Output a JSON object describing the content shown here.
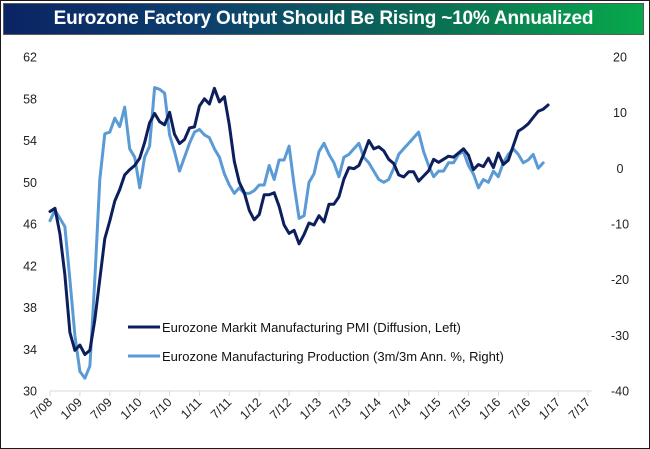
{
  "chart_data": {
    "type": "line",
    "title": "Eurozone Factory Output Should Be Rising ~10% Annualized",
    "xlabel": "",
    "ylabel_left": "",
    "ylabel_right": "",
    "x_start": "7/08",
    "x_tick_labels": [
      "7/08",
      "1/09",
      "7/09",
      "1/10",
      "7/10",
      "1/11",
      "7/11",
      "1/12",
      "7/12",
      "1/13",
      "7/13",
      "1/14",
      "7/14",
      "1/15",
      "7/15",
      "1/16",
      "7/16",
      "1/17",
      "7/17"
    ],
    "y_left": {
      "range": [
        30,
        62
      ],
      "ticks": [
        "62",
        "58",
        "54",
        "50",
        "46",
        "42",
        "38",
        "34",
        "30"
      ]
    },
    "y_right": {
      "range": [
        -40,
        20
      ],
      "ticks": [
        "20",
        "10",
        "0",
        "-10",
        "-20",
        "-30",
        "-40"
      ]
    },
    "grid": false,
    "legend_position": "bottom-left-inside",
    "series": [
      {
        "name": "Eurozone Markit Manufacturing PMI (Diffusion, Left)",
        "axis": "left",
        "color": "#0c1f5c",
        "frequency": "monthly",
        "start": "7/08",
        "values": [
          47.2,
          47.5,
          45.0,
          41.1,
          35.6,
          33.9,
          34.4,
          33.5,
          33.9,
          36.8,
          40.7,
          44.6,
          46.3,
          48.2,
          49.3,
          50.7,
          51.2,
          51.6,
          52.3,
          53.8,
          55.7,
          56.6,
          55.8,
          55.5,
          56.7,
          54.6,
          53.7,
          54.1,
          55.2,
          55.3,
          57.3,
          58.0,
          57.5,
          59.0,
          57.7,
          58.2,
          55.5,
          52.0,
          50.0,
          49.0,
          47.3,
          46.4,
          46.9,
          48.8,
          48.8,
          49.0,
          47.7,
          45.9,
          45.1,
          45.4,
          44.1,
          45.0,
          46.1,
          45.9,
          46.8,
          46.2,
          47.9,
          47.9,
          48.6,
          50.3,
          51.4,
          51.3,
          51.6,
          52.7,
          54.0,
          53.2,
          53.4,
          53.0,
          52.2,
          51.8,
          50.7,
          50.5,
          51.0,
          51.0,
          50.1,
          50.6,
          51.1,
          52.2,
          51.9,
          52.2,
          52.5,
          52.4,
          52.8,
          53.2,
          52.6,
          51.2,
          51.7,
          51.5,
          52.3,
          51.4,
          52.8,
          51.7,
          52.1,
          53.5,
          54.9,
          55.2,
          55.6,
          56.2,
          56.8,
          57.0,
          57.4
        ]
      },
      {
        "name": "Eurozone Manufacturing Production (3m/3m Ann. %, Right)",
        "axis": "right",
        "color": "#5b9bd5",
        "frequency": "monthly",
        "start": "7/08",
        "values": [
          -9.4,
          -7.5,
          -9.0,
          -10.5,
          -20.0,
          -30.0,
          -36.5,
          -37.7,
          -35.5,
          -20.0,
          -2.0,
          6.2,
          6.5,
          9.0,
          7.5,
          11.0,
          3.5,
          2.0,
          -3.5,
          2.0,
          4.0,
          14.5,
          14.2,
          13.5,
          6.0,
          3.0,
          -0.5,
          2.0,
          4.5,
          6.5,
          7.0,
          6.0,
          5.5,
          3.5,
          2.0,
          -1.0,
          -3.0,
          -4.5,
          -3.5,
          -4.5,
          -4.5,
          -4.0,
          -3.0,
          -3.0,
          0.5,
          -2.0,
          1.5,
          1.5,
          4.0,
          -3.0,
          -9.0,
          -8.5,
          -2.5,
          -1.0,
          3.0,
          4.5,
          2.5,
          1.0,
          -1.5,
          2.0,
          2.5,
          3.5,
          4.5,
          2.0,
          1.0,
          -0.5,
          -2.0,
          -2.5,
          -2.0,
          0.0,
          2.5,
          3.5,
          4.5,
          5.5,
          6.5,
          3.0,
          0.5,
          -1.5,
          -0.5,
          -0.5,
          1.0,
          1.0,
          2.5,
          3.0,
          0.5,
          -1.0,
          -3.5,
          -2.0,
          -2.5,
          -0.5,
          -1.5,
          1.0,
          2.5,
          3.5,
          2.5,
          1.0,
          1.5,
          2.5,
          0.0,
          1.0
        ]
      }
    ]
  }
}
